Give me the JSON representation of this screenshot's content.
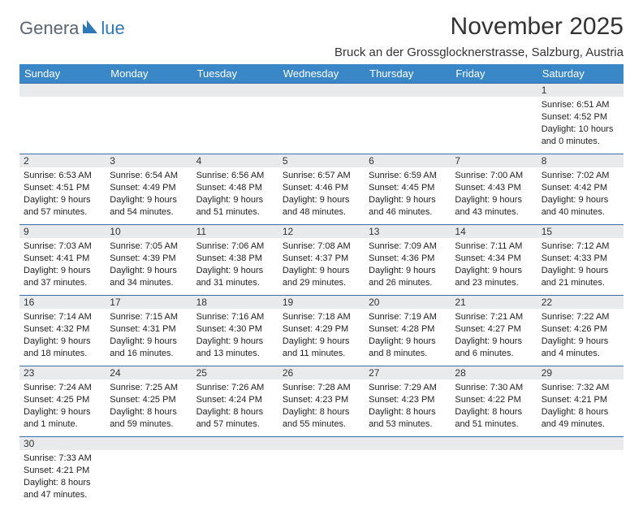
{
  "logo": {
    "text1": "Genera",
    "text2": "lue",
    "mark_color": "#2f78b7",
    "text1_color": "#5a6570"
  },
  "title": "November 2025",
  "subtitle": "Bruck an der Grossglocknerstrasse, Salzburg, Austria",
  "colors": {
    "header_bg": "#3a87c8",
    "header_fg": "#ffffff",
    "rule": "#3a6ea8",
    "daynum_bg": "#e9eaec"
  },
  "day_headers": [
    "Sunday",
    "Monday",
    "Tuesday",
    "Wednesday",
    "Thursday",
    "Friday",
    "Saturday"
  ],
  "weeks": [
    [
      null,
      null,
      null,
      null,
      null,
      null,
      {
        "n": "1",
        "sr": "Sunrise: 6:51 AM",
        "ss": "Sunset: 4:52 PM",
        "d1": "Daylight: 10 hours",
        "d2": "and 0 minutes."
      }
    ],
    [
      {
        "n": "2",
        "sr": "Sunrise: 6:53 AM",
        "ss": "Sunset: 4:51 PM",
        "d1": "Daylight: 9 hours",
        "d2": "and 57 minutes."
      },
      {
        "n": "3",
        "sr": "Sunrise: 6:54 AM",
        "ss": "Sunset: 4:49 PM",
        "d1": "Daylight: 9 hours",
        "d2": "and 54 minutes."
      },
      {
        "n": "4",
        "sr": "Sunrise: 6:56 AM",
        "ss": "Sunset: 4:48 PM",
        "d1": "Daylight: 9 hours",
        "d2": "and 51 minutes."
      },
      {
        "n": "5",
        "sr": "Sunrise: 6:57 AM",
        "ss": "Sunset: 4:46 PM",
        "d1": "Daylight: 9 hours",
        "d2": "and 48 minutes."
      },
      {
        "n": "6",
        "sr": "Sunrise: 6:59 AM",
        "ss": "Sunset: 4:45 PM",
        "d1": "Daylight: 9 hours",
        "d2": "and 46 minutes."
      },
      {
        "n": "7",
        "sr": "Sunrise: 7:00 AM",
        "ss": "Sunset: 4:43 PM",
        "d1": "Daylight: 9 hours",
        "d2": "and 43 minutes."
      },
      {
        "n": "8",
        "sr": "Sunrise: 7:02 AM",
        "ss": "Sunset: 4:42 PM",
        "d1": "Daylight: 9 hours",
        "d2": "and 40 minutes."
      }
    ],
    [
      {
        "n": "9",
        "sr": "Sunrise: 7:03 AM",
        "ss": "Sunset: 4:41 PM",
        "d1": "Daylight: 9 hours",
        "d2": "and 37 minutes."
      },
      {
        "n": "10",
        "sr": "Sunrise: 7:05 AM",
        "ss": "Sunset: 4:39 PM",
        "d1": "Daylight: 9 hours",
        "d2": "and 34 minutes."
      },
      {
        "n": "11",
        "sr": "Sunrise: 7:06 AM",
        "ss": "Sunset: 4:38 PM",
        "d1": "Daylight: 9 hours",
        "d2": "and 31 minutes."
      },
      {
        "n": "12",
        "sr": "Sunrise: 7:08 AM",
        "ss": "Sunset: 4:37 PM",
        "d1": "Daylight: 9 hours",
        "d2": "and 29 minutes."
      },
      {
        "n": "13",
        "sr": "Sunrise: 7:09 AM",
        "ss": "Sunset: 4:36 PM",
        "d1": "Daylight: 9 hours",
        "d2": "and 26 minutes."
      },
      {
        "n": "14",
        "sr": "Sunrise: 7:11 AM",
        "ss": "Sunset: 4:34 PM",
        "d1": "Daylight: 9 hours",
        "d2": "and 23 minutes."
      },
      {
        "n": "15",
        "sr": "Sunrise: 7:12 AM",
        "ss": "Sunset: 4:33 PM",
        "d1": "Daylight: 9 hours",
        "d2": "and 21 minutes."
      }
    ],
    [
      {
        "n": "16",
        "sr": "Sunrise: 7:14 AM",
        "ss": "Sunset: 4:32 PM",
        "d1": "Daylight: 9 hours",
        "d2": "and 18 minutes."
      },
      {
        "n": "17",
        "sr": "Sunrise: 7:15 AM",
        "ss": "Sunset: 4:31 PM",
        "d1": "Daylight: 9 hours",
        "d2": "and 16 minutes."
      },
      {
        "n": "18",
        "sr": "Sunrise: 7:16 AM",
        "ss": "Sunset: 4:30 PM",
        "d1": "Daylight: 9 hours",
        "d2": "and 13 minutes."
      },
      {
        "n": "19",
        "sr": "Sunrise: 7:18 AM",
        "ss": "Sunset: 4:29 PM",
        "d1": "Daylight: 9 hours",
        "d2": "and 11 minutes."
      },
      {
        "n": "20",
        "sr": "Sunrise: 7:19 AM",
        "ss": "Sunset: 4:28 PM",
        "d1": "Daylight: 9 hours",
        "d2": "and 8 minutes."
      },
      {
        "n": "21",
        "sr": "Sunrise: 7:21 AM",
        "ss": "Sunset: 4:27 PM",
        "d1": "Daylight: 9 hours",
        "d2": "and 6 minutes."
      },
      {
        "n": "22",
        "sr": "Sunrise: 7:22 AM",
        "ss": "Sunset: 4:26 PM",
        "d1": "Daylight: 9 hours",
        "d2": "and 4 minutes."
      }
    ],
    [
      {
        "n": "23",
        "sr": "Sunrise: 7:24 AM",
        "ss": "Sunset: 4:25 PM",
        "d1": "Daylight: 9 hours",
        "d2": "and 1 minute."
      },
      {
        "n": "24",
        "sr": "Sunrise: 7:25 AM",
        "ss": "Sunset: 4:25 PM",
        "d1": "Daylight: 8 hours",
        "d2": "and 59 minutes."
      },
      {
        "n": "25",
        "sr": "Sunrise: 7:26 AM",
        "ss": "Sunset: 4:24 PM",
        "d1": "Daylight: 8 hours",
        "d2": "and 57 minutes."
      },
      {
        "n": "26",
        "sr": "Sunrise: 7:28 AM",
        "ss": "Sunset: 4:23 PM",
        "d1": "Daylight: 8 hours",
        "d2": "and 55 minutes."
      },
      {
        "n": "27",
        "sr": "Sunrise: 7:29 AM",
        "ss": "Sunset: 4:23 PM",
        "d1": "Daylight: 8 hours",
        "d2": "and 53 minutes."
      },
      {
        "n": "28",
        "sr": "Sunrise: 7:30 AM",
        "ss": "Sunset: 4:22 PM",
        "d1": "Daylight: 8 hours",
        "d2": "and 51 minutes."
      },
      {
        "n": "29",
        "sr": "Sunrise: 7:32 AM",
        "ss": "Sunset: 4:21 PM",
        "d1": "Daylight: 8 hours",
        "d2": "and 49 minutes."
      }
    ],
    [
      {
        "n": "30",
        "sr": "Sunrise: 7:33 AM",
        "ss": "Sunset: 4:21 PM",
        "d1": "Daylight: 8 hours",
        "d2": "and 47 minutes."
      },
      null,
      null,
      null,
      null,
      null,
      null
    ]
  ]
}
